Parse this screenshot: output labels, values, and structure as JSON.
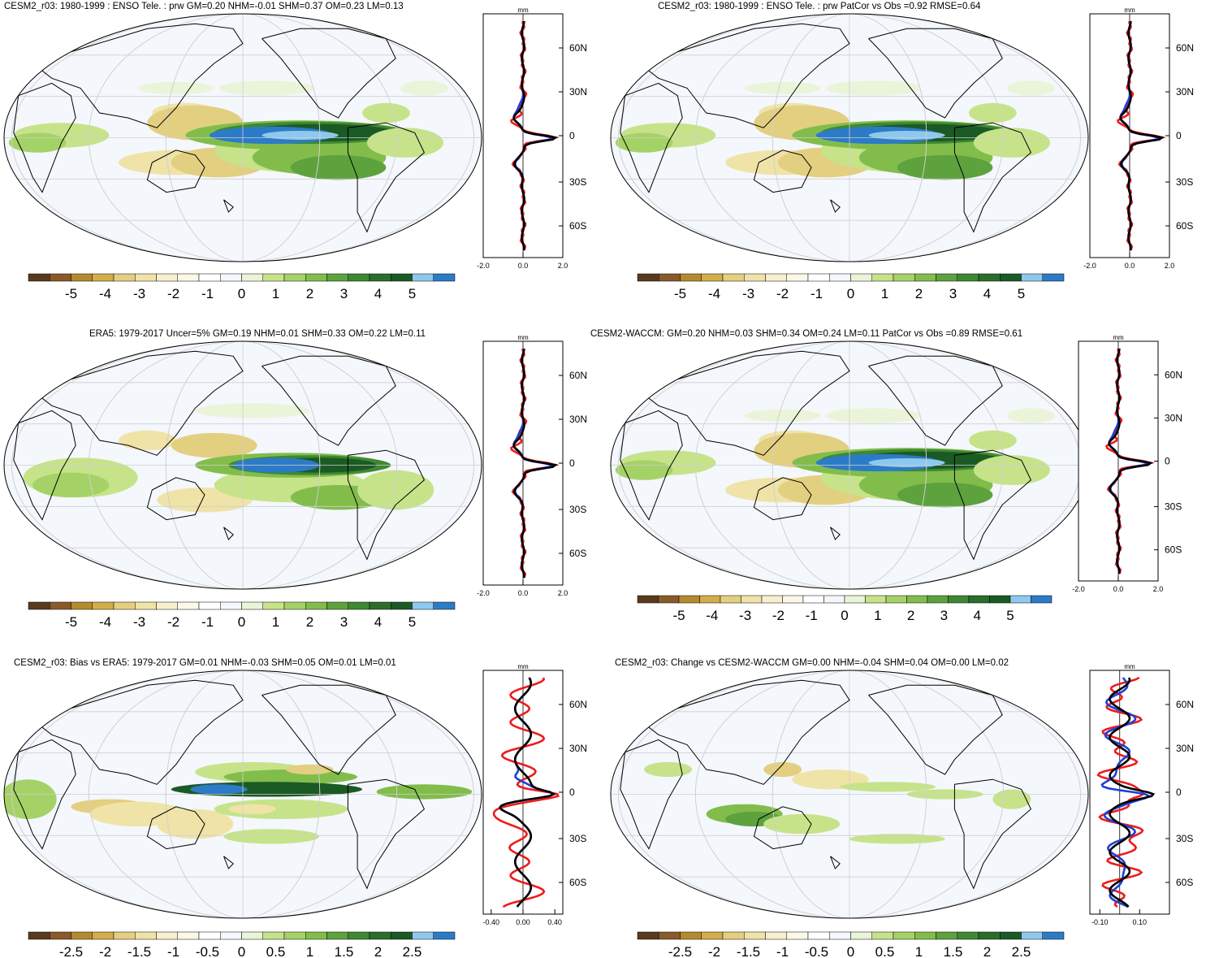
{
  "panels": [
    {
      "title": "CESM2_r03: 1980-1999 : ENSO Tele. : prw GM=0.20 NHM=-0.01 SHM=0.37 OM=0.23 LM=0.13",
      "field": "model",
      "colorbar_labels": [
        "-5",
        "-4",
        "-3",
        "-2",
        "-1",
        "0",
        "1",
        "2",
        "3",
        "4",
        "5"
      ],
      "zonal": {
        "unit": "mm",
        "xticks": [
          "-2.0",
          "0.0",
          "2.0"
        ],
        "xrange": [
          -2,
          2
        ],
        "lat_labels": [
          "60N",
          "30N",
          "0",
          "30S",
          "60S"
        ]
      }
    },
    {
      "title": "CESM2_r03: 1980-1999 : ENSO Tele. : prw PatCor vs Obs =0.92 RMSE=0.64",
      "field": "model",
      "colorbar_labels": [
        "-5",
        "-4",
        "-3",
        "-2",
        "-1",
        "0",
        "1",
        "2",
        "3",
        "4",
        "5"
      ],
      "zonal": {
        "unit": "mm",
        "xticks": [
          "-2.0",
          "0.0",
          "2.0"
        ],
        "xrange": [
          -2,
          2
        ],
        "lat_labels": [
          "60N",
          "30N",
          "0",
          "30S",
          "60S"
        ]
      }
    },
    {
      "title": "ERA5: 1979-2017 Uncer=5% GM=0.19 NHM=0.01 SHM=0.33 OM=0.22 LM=0.11",
      "field": "obs",
      "colorbar_labels": [
        "-5",
        "-4",
        "-3",
        "-2",
        "-1",
        "0",
        "1",
        "2",
        "3",
        "4",
        "5"
      ],
      "zonal": {
        "unit": "mm",
        "xticks": [
          "-2.0",
          "0.0",
          "2.0"
        ],
        "xrange": [
          -2,
          2
        ],
        "lat_labels": [
          "60N",
          "30N",
          "0",
          "30S",
          "60S"
        ]
      }
    },
    {
      "title": "CESM2-WACCM: GM=0.20 NHM=0.03 SHM=0.34 OM=0.24 LM=0.11 PatCor vs Obs =0.89 RMSE=0.61",
      "field": "model",
      "colorbar_labels": [
        "-5",
        "-4",
        "-3",
        "-2",
        "-1",
        "0",
        "1",
        "2",
        "3",
        "4",
        "5"
      ],
      "zonal": {
        "unit": "mm",
        "xticks": [
          "-2.0",
          "0.0",
          "2.0"
        ],
        "xrange": [
          -2,
          2
        ],
        "lat_labels": [
          "60N",
          "30N",
          "0",
          "30S",
          "60S"
        ]
      }
    },
    {
      "title": "CESM2_r03: Bias vs ERA5: 1979-2017 GM=0.01 NHM=-0.03 SHM=0.05 OM=0.01 LM=0.01",
      "field": "bias",
      "colorbar_labels": [
        "-2.5",
        "-2",
        "-1.5",
        "-1",
        "-0.5",
        "0",
        "0.5",
        "1",
        "1.5",
        "2",
        "2.5"
      ],
      "zonal": {
        "unit": "mm",
        "xticks": [
          "-0.40",
          "0.00",
          "0.40"
        ],
        "xrange": [
          -0.5,
          0.5
        ],
        "lat_labels": [
          "60N",
          "30N",
          "0",
          "30S",
          "60S"
        ]
      }
    },
    {
      "title": "CESM2_r03: Change vs CESM2-WACCM GM=0.00 NHM=-0.04 SHM=0.04 OM=0.00 LM=0.02",
      "field": "change",
      "colorbar_labels": [
        "-2.5",
        "-2",
        "-1.5",
        "-1",
        "-0.5",
        "0",
        "0.5",
        "1",
        "1.5",
        "2",
        "2.5"
      ],
      "zonal": {
        "unit": "mm",
        "xticks": [
          "-0.10",
          "0.10"
        ],
        "xrange": [
          -0.15,
          0.25
        ],
        "lat_labels": [
          "60N",
          "30N",
          "0",
          "30S",
          "60S"
        ]
      }
    }
  ],
  "palette": [
    "#5a3a1e",
    "#8a5a2a",
    "#b58a2e",
    "#d2ae4a",
    "#e3cf80",
    "#efe3a8",
    "#f6f0cf",
    "#fbf8e9",
    "#ffffff",
    "#f4f7fc",
    "#eaf4d8",
    "#c6e38a",
    "#a5d266",
    "#82bd4c",
    "#5ea23e",
    "#3f8833",
    "#2a6e2a",
    "#1b5a24",
    "#8ec8ee",
    "#2c7bc7"
  ],
  "line_colors": {
    "model": "#000000",
    "obs": "#ee1c1c",
    "other": "#1f3fd6"
  }
}
